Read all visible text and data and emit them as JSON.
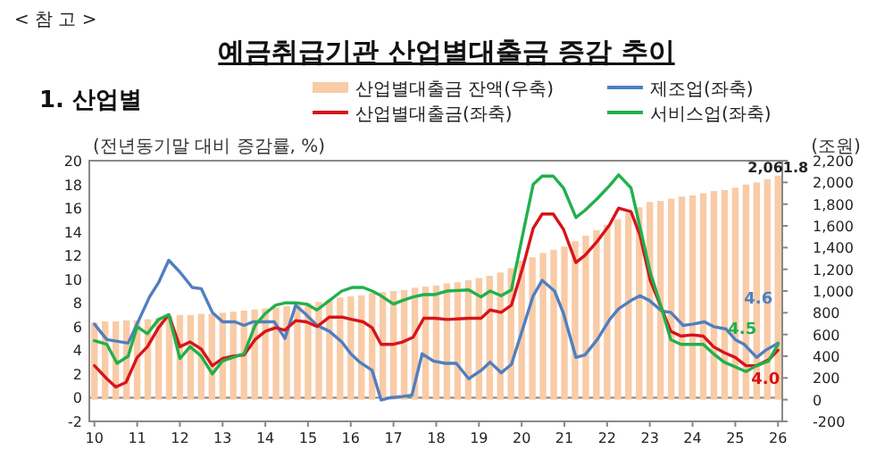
{
  "chart_data": {
    "type": "line",
    "title": "예금취급기관 산업별대출금 증감 추이",
    "subtitle": "1. 산업별",
    "annotations": [
      "< 참 고 >"
    ],
    "ylabel": "(전년동기말 대비 증감률, %)",
    "y2label": "(조원)",
    "xlim": [
      2009.88,
      2026.1
    ],
    "xticks": [
      {
        "value": 2010,
        "label": "10"
      },
      {
        "value": 2011,
        "label": "11"
      },
      {
        "value": 2012,
        "label": "12"
      },
      {
        "value": 2013,
        "label": "13"
      },
      {
        "value": 2014,
        "label": "14"
      },
      {
        "value": 2015,
        "label": "15"
      },
      {
        "value": 2016,
        "label": "16"
      },
      {
        "value": 2017,
        "label": "17"
      },
      {
        "value": 2018,
        "label": "18"
      },
      {
        "value": 2019,
        "label": "19"
      },
      {
        "value": 2020,
        "label": "20"
      },
      {
        "value": 2021,
        "label": "21"
      },
      {
        "value": 2022,
        "label": "22"
      },
      {
        "value": 2023,
        "label": "23"
      },
      {
        "value": 2024,
        "label": "24"
      },
      {
        "value": 2025,
        "label": "25"
      },
      {
        "value": 2026,
        "label": "26"
      }
    ],
    "ylim": [
      -2,
      20
    ],
    "yticks": [
      -2,
      0,
      2,
      4,
      6,
      8,
      10,
      12,
      14,
      16,
      18,
      20
    ],
    "y2lim": [
      -200,
      2200
    ],
    "y2ticks": [
      -200,
      0,
      200,
      400,
      600,
      800,
      {
        "value": 1000,
        "label": "1,000"
      },
      {
        "value": 1200,
        "label": "1,200"
      },
      {
        "value": 1400,
        "label": "1,400"
      },
      {
        "value": 1600,
        "label": "1,600"
      },
      {
        "value": 1800,
        "label": "1,800"
      },
      {
        "value": 2000,
        "label": "2,000"
      },
      {
        "value": 2200,
        "label": "2,200"
      }
    ],
    "legend": "top",
    "ref_lines": [
      {
        "axis": "y",
        "value": 0,
        "color": "#808080"
      }
    ],
    "series": [
      {
        "name": "산업별대출금 잔액(우축)",
        "type": "bar",
        "axis": "y2",
        "color": "#f9cba6",
        "x": [
          2010,
          2010.25,
          2010.5,
          2010.75,
          2011,
          2011.25,
          2011.5,
          2011.75,
          2012,
          2012.25,
          2012.5,
          2012.75,
          2013,
          2013.25,
          2013.5,
          2013.75,
          2014,
          2014.25,
          2014.5,
          2014.75,
          2015,
          2015.25,
          2015.5,
          2015.75,
          2016,
          2016.25,
          2016.5,
          2016.75,
          2017,
          2017.25,
          2017.5,
          2017.75,
          2018,
          2018.25,
          2018.5,
          2018.75,
          2019,
          2019.25,
          2019.5,
          2019.75,
          2020,
          2020.25,
          2020.5,
          2020.75,
          2021,
          2021.25,
          2021.5,
          2021.75,
          2022,
          2022.25,
          2022.5,
          2022.75,
          2023,
          2023.25,
          2023.5,
          2023.75,
          2024,
          2024.25,
          2024.5,
          2024.75,
          2025,
          2025.25,
          2025.5,
          2025.75,
          2026
        ],
        "values": [
          710,
          720,
          720,
          730,
          730,
          740,
          750,
          770,
          780,
          780,
          790,
          790,
          800,
          810,
          820,
          830,
          840,
          850,
          860,
          870,
          890,
          900,
          920,
          940,
          950,
          960,
          980,
          990,
          1000,
          1010,
          1030,
          1040,
          1050,
          1070,
          1080,
          1100,
          1120,
          1140,
          1170,
          1210,
          1280,
          1310,
          1350,
          1380,
          1410,
          1460,
          1510,
          1560,
          1610,
          1660,
          1720,
          1770,
          1820,
          1830,
          1850,
          1870,
          1880,
          1900,
          1920,
          1930,
          1950,
          1980,
          2000,
          2030,
          2061.8
        ],
        "value_labels": [
          null,
          null,
          null,
          null,
          null,
          null,
          null,
          null,
          null,
          null,
          null,
          null,
          null,
          null,
          null,
          null,
          null,
          null,
          null,
          null,
          null,
          null,
          null,
          null,
          null,
          null,
          null,
          null,
          null,
          null,
          null,
          null,
          null,
          null,
          null,
          null,
          null,
          null,
          null,
          null,
          null,
          null,
          null,
          null,
          null,
          null,
          null,
          null,
          null,
          null,
          null,
          null,
          null,
          null,
          null,
          null,
          null,
          null,
          null,
          null,
          null,
          null,
          null,
          null,
          "2,061.8"
        ]
      },
      {
        "name": "제조업(좌축)",
        "color": "#4f7fc0",
        "x": [
          2010.0,
          2010.29,
          2010.79,
          2011.29,
          2011.5,
          2011.74,
          2012.0,
          2012.29,
          2012.5,
          2012.76,
          2013.0,
          2013.29,
          2013.5,
          2013.71,
          2014.0,
          2014.21,
          2014.46,
          2014.71,
          2014.93,
          2015.21,
          2015.5,
          2015.79,
          2016.0,
          2016.21,
          2016.5,
          2016.71,
          2016.93,
          2017.21,
          2017.43,
          2017.67,
          2017.93,
          2018.21,
          2018.47,
          2018.76,
          2019.05,
          2019.26,
          2019.52,
          2019.76,
          2020.05,
          2020.27,
          2020.48,
          2020.77,
          2020.98,
          2021.27,
          2021.48,
          2021.77,
          2022.06,
          2022.27,
          2022.56,
          2022.77,
          2022.99,
          2023.28,
          2023.49,
          2023.78,
          2024.0,
          2024.28,
          2024.49,
          2024.78,
          2025.0,
          2025.21,
          2025.5,
          2025.71,
          2026.0
        ],
        "values": [
          6.2,
          4.9,
          4.6,
          8.5,
          9.7,
          11.6,
          10.6,
          9.3,
          9.2,
          7.2,
          6.4,
          6.4,
          6.1,
          6.4,
          6.4,
          6.4,
          5.0,
          7.8,
          7.1,
          6.1,
          5.6,
          4.7,
          3.7,
          3.0,
          2.3,
          -0.2,
          0.0,
          0.1,
          0.2,
          3.7,
          3.1,
          2.9,
          2.9,
          1.6,
          2.3,
          3.0,
          2.1,
          2.8,
          6.1,
          8.6,
          9.9,
          9.0,
          7.1,
          3.4,
          3.6,
          4.9,
          6.6,
          7.5,
          8.2,
          8.6,
          8.2,
          7.3,
          7.2,
          6.1,
          6.2,
          6.4,
          6.0,
          5.8,
          4.9,
          4.5,
          3.4,
          4.0,
          4.6
        ],
        "value_labels": [
          null,
          null,
          null,
          null,
          null,
          null,
          null,
          null,
          null,
          null,
          null,
          null,
          null,
          null,
          null,
          null,
          null,
          null,
          null,
          null,
          null,
          null,
          null,
          null,
          null,
          null,
          null,
          null,
          null,
          null,
          null,
          null,
          null,
          null,
          null,
          null,
          null,
          null,
          null,
          null,
          null,
          null,
          null,
          null,
          null,
          null,
          null,
          null,
          null,
          null,
          null,
          null,
          null,
          null,
          null,
          null,
          null,
          null,
          null,
          null,
          null,
          null,
          "4.6"
        ]
      },
      {
        "name": "산업별대출금(좌축)",
        "color": "#d7141b",
        "x": [
          2010.0,
          2010.29,
          2010.5,
          2010.74,
          2011.0,
          2011.24,
          2011.5,
          2011.74,
          2012.0,
          2012.24,
          2012.5,
          2012.76,
          2013.0,
          2013.24,
          2013.5,
          2013.76,
          2014.0,
          2014.24,
          2014.46,
          2014.71,
          2014.96,
          2015.21,
          2015.5,
          2015.79,
          2016.03,
          2016.29,
          2016.5,
          2016.71,
          2017.0,
          2017.21,
          2017.46,
          2017.71,
          2017.97,
          2018.26,
          2018.76,
          2019.05,
          2019.26,
          2019.52,
          2019.76,
          2020.05,
          2020.27,
          2020.48,
          2020.74,
          2020.98,
          2021.27,
          2021.48,
          2021.77,
          2022.06,
          2022.27,
          2022.56,
          2022.77,
          2023.01,
          2023.28,
          2023.49,
          2023.73,
          2023.99,
          2024.25,
          2024.49,
          2024.74,
          2025.0,
          2025.25,
          2025.5,
          2025.78,
          2026.0
        ],
        "values": [
          2.7,
          1.6,
          0.9,
          1.3,
          3.4,
          4.3,
          5.9,
          7.0,
          4.3,
          4.7,
          4.1,
          2.7,
          3.3,
          3.5,
          3.6,
          4.9,
          5.6,
          5.9,
          5.7,
          6.5,
          6.4,
          6.0,
          6.8,
          6.8,
          6.6,
          6.4,
          5.9,
          4.5,
          4.5,
          4.7,
          5.1,
          6.7,
          6.7,
          6.6,
          6.7,
          6.7,
          7.4,
          7.2,
          7.8,
          11.3,
          14.3,
          15.5,
          15.5,
          14.2,
          11.4,
          12.0,
          13.2,
          14.6,
          16.0,
          15.7,
          13.7,
          9.9,
          7.5,
          5.6,
          5.2,
          5.3,
          5.2,
          4.3,
          3.8,
          3.4,
          2.7,
          2.7,
          3.2,
          4.0
        ],
        "value_labels": [
          null,
          null,
          null,
          null,
          null,
          null,
          null,
          null,
          null,
          null,
          null,
          null,
          null,
          null,
          null,
          null,
          null,
          null,
          null,
          null,
          null,
          null,
          null,
          null,
          null,
          null,
          null,
          null,
          null,
          null,
          null,
          null,
          null,
          null,
          null,
          null,
          null,
          null,
          null,
          null,
          null,
          null,
          null,
          null,
          null,
          null,
          null,
          null,
          null,
          null,
          null,
          null,
          null,
          null,
          null,
          null,
          null,
          null,
          null,
          null,
          null,
          null,
          null,
          "4.0"
        ]
      },
      {
        "name": "서비스업(좌축)",
        "color": "#21b04b",
        "x": [
          2010.0,
          2010.29,
          2010.53,
          2010.79,
          2011.0,
          2011.24,
          2011.5,
          2011.74,
          2012.0,
          2012.24,
          2012.5,
          2012.76,
          2013.0,
          2013.24,
          2013.5,
          2013.76,
          2014.0,
          2014.24,
          2014.46,
          2014.71,
          2014.96,
          2015.21,
          2015.5,
          2015.79,
          2016.03,
          2016.29,
          2016.5,
          2016.71,
          2017.0,
          2017.21,
          2017.46,
          2017.71,
          2017.97,
          2018.26,
          2018.76,
          2019.05,
          2019.26,
          2019.52,
          2019.76,
          2020.05,
          2020.27,
          2020.48,
          2020.74,
          2020.98,
          2021.27,
          2021.48,
          2021.77,
          2022.06,
          2022.27,
          2022.56,
          2022.77,
          2023.01,
          2023.28,
          2023.49,
          2023.73,
          2023.99,
          2024.25,
          2024.49,
          2024.74,
          2025.0,
          2025.25,
          2025.5,
          2025.78,
          2026.0
        ],
        "values": [
          4.8,
          4.5,
          2.9,
          3.5,
          6.0,
          5.4,
          6.6,
          7.0,
          3.3,
          4.3,
          3.5,
          2.0,
          3.1,
          3.4,
          3.7,
          6.1,
          7.1,
          7.8,
          8.0,
          8.0,
          7.9,
          7.4,
          8.2,
          9.0,
          9.3,
          9.3,
          9.0,
          8.6,
          7.9,
          8.2,
          8.5,
          8.7,
          8.7,
          9.0,
          9.1,
          8.5,
          9.0,
          8.6,
          9.1,
          14.2,
          18.0,
          18.7,
          18.7,
          17.7,
          15.2,
          15.8,
          16.8,
          17.9,
          18.8,
          17.7,
          14.4,
          10.6,
          7.5,
          4.9,
          4.5,
          4.5,
          4.5,
          3.7,
          3.0,
          2.6,
          2.2,
          2.7,
          3.1,
          4.5
        ],
        "value_labels": [
          null,
          null,
          null,
          null,
          null,
          null,
          null,
          null,
          null,
          null,
          null,
          null,
          null,
          null,
          null,
          null,
          null,
          null,
          null,
          null,
          null,
          null,
          null,
          null,
          null,
          null,
          null,
          null,
          null,
          null,
          null,
          null,
          null,
          null,
          null,
          null,
          null,
          null,
          null,
          null,
          null,
          null,
          null,
          null,
          null,
          null,
          null,
          null,
          null,
          null,
          null,
          null,
          null,
          null,
          null,
          null,
          null,
          null,
          null,
          null,
          null,
          null,
          null,
          "4.5"
        ]
      }
    ]
  }
}
